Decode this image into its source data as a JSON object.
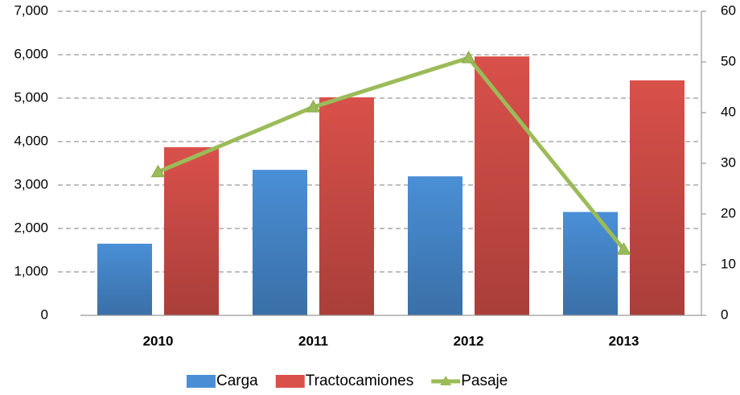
{
  "chart_data": {
    "type": "bar",
    "categories": [
      "2010",
      "2011",
      "2012",
      "2013"
    ],
    "series": [
      {
        "name": "Carga",
        "color": "#4a8fd6",
        "values": [
          1650,
          3350,
          3200,
          2380
        ]
      },
      {
        "name": "Tractocamiones",
        "color": "#d9504a",
        "values": [
          3870,
          5020,
          5960,
          5410
        ]
      },
      {
        "name": "Pasaje",
        "color": "#9bbb59",
        "type": "line",
        "axis": "y2",
        "values": [
          28.3,
          41.1,
          50.8,
          13.0
        ]
      }
    ],
    "ylim": [
      0,
      7000
    ],
    "yticks": [
      0,
      {
        "value": 1000,
        "label": "1,000"
      },
      {
        "value": 2000,
        "label": "2,000"
      },
      {
        "value": 3000,
        "label": "3,000"
      },
      {
        "value": 4000,
        "label": "4,000"
      },
      {
        "value": 5000,
        "label": "5,000"
      },
      {
        "value": 6000,
        "label": "6,000"
      },
      {
        "value": 7000,
        "label": "7,000"
      }
    ],
    "y2lim": [
      0,
      60
    ],
    "y2ticks": [
      0,
      10,
      20,
      30,
      40,
      50,
      60
    ],
    "grid": true,
    "legend": "bottom"
  }
}
